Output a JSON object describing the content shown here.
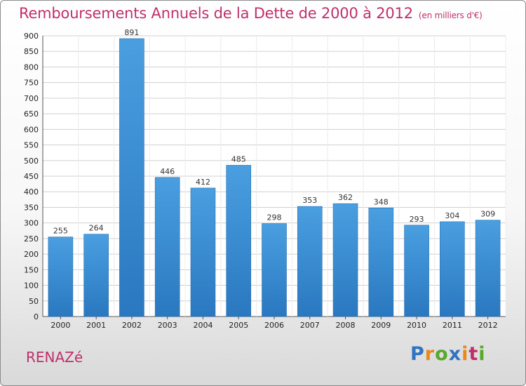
{
  "title": "Remboursements Annuels de la Dette de 2000 à 2012",
  "subtitle": "(en milliers d'€)",
  "commune": "RENAZé",
  "logo": {
    "letters": [
      "P",
      "r",
      "o",
      "x",
      "i",
      "t",
      "i"
    ],
    "colors": [
      "#2f74c0",
      "#e8891b",
      "#56a92a",
      "#2f74c0",
      "#e8891b",
      "#c0306a",
      "#56a92a"
    ]
  },
  "colors": {
    "bar": "#4a9fe0",
    "bar_dark": "#2a78c0",
    "title": "#c0306a"
  },
  "chart_data": {
    "type": "bar",
    "categories": [
      "2000",
      "2001",
      "2002",
      "2003",
      "2004",
      "2005",
      "2006",
      "2007",
      "2008",
      "2009",
      "2010",
      "2011",
      "2012"
    ],
    "values": [
      255,
      264,
      891,
      446,
      412,
      485,
      298,
      353,
      362,
      348,
      293,
      304,
      309
    ],
    "data_labels": [
      "255",
      "264",
      "891",
      "446",
      "412",
      "485",
      "298",
      "353",
      "362",
      "348",
      "293",
      "304",
      "309"
    ],
    "yticks": [
      "0",
      "50",
      "100",
      "150",
      "200",
      "250",
      "300",
      "350",
      "400",
      "450",
      "500",
      "550",
      "600",
      "650",
      "700",
      "750",
      "800",
      "850",
      "900"
    ],
    "ylim": [
      0,
      900
    ],
    "grid": true,
    "xlabel": "",
    "ylabel": ""
  }
}
